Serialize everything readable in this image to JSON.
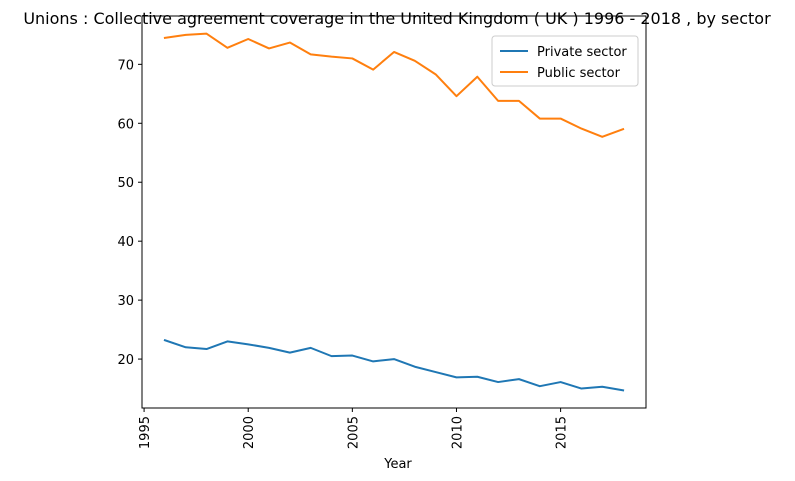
{
  "chart_data": {
    "type": "line",
    "title": "Unions : Collective agreement coverage in the United Kingdom ( UK ) 1996 - 2018 , by sector",
    "xlabel": "Year",
    "ylabel": "",
    "x": [
      1996,
      1997,
      1998,
      1999,
      2000,
      2001,
      2002,
      2003,
      2004,
      2005,
      2006,
      2007,
      2008,
      2009,
      2010,
      2011,
      2012,
      2013,
      2014,
      2015,
      2016,
      2017,
      2018
    ],
    "series": [
      {
        "name": "Private sector",
        "color": "#1f77b4",
        "values": [
          23.2,
          22.0,
          21.7,
          23.0,
          22.5,
          21.9,
          21.1,
          21.9,
          20.5,
          20.6,
          19.6,
          20.0,
          18.7,
          17.8,
          16.9,
          17.0,
          16.1,
          16.6,
          15.4,
          16.1,
          15.0,
          15.3,
          14.7
        ]
      },
      {
        "name": "Public sector",
        "color": "#ff7f0e",
        "values": [
          74.5,
          75.0,
          75.2,
          72.8,
          74.3,
          72.7,
          73.7,
          71.7,
          71.3,
          71.0,
          69.1,
          72.1,
          70.6,
          68.3,
          64.6,
          67.9,
          63.8,
          63.8,
          60.8,
          60.8,
          59.1,
          57.7,
          59.0
        ]
      }
    ],
    "xticks": [
      1995,
      2000,
      2005,
      2010,
      2015
    ],
    "yticks": [
      20,
      30,
      40,
      50,
      60,
      70
    ],
    "xlim": [
      1994.9,
      2019.1
    ],
    "ylim": [
      11.7,
      78.2
    ],
    "grid": false,
    "legend_position": "top-right"
  }
}
